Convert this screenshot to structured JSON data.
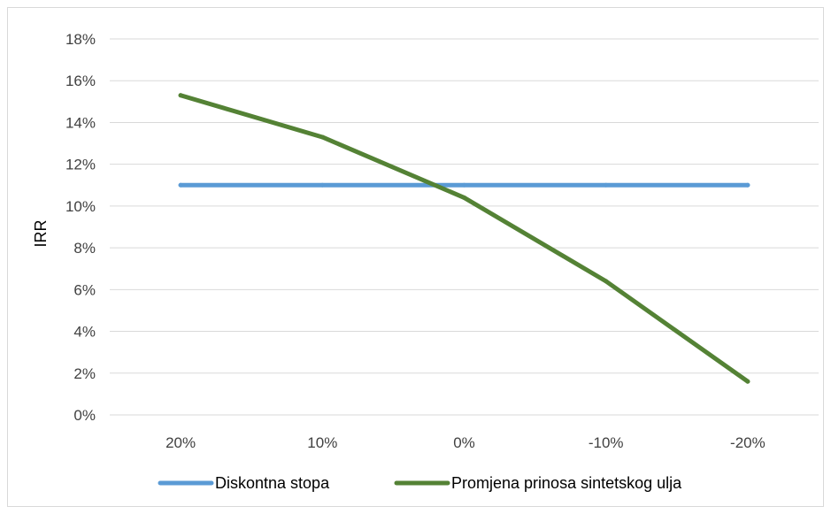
{
  "chart_data": {
    "type": "line",
    "categories": [
      "20%",
      "10%",
      "0%",
      "-10%",
      "-20%"
    ],
    "y_ticks": [
      "0%",
      "2%",
      "4%",
      "6%",
      "8%",
      "10%",
      "12%",
      "14%",
      "16%",
      "18%"
    ],
    "ylabel": "IRR",
    "ylim": [
      0,
      18
    ],
    "grid": true,
    "legend_position": "bottom",
    "series": [
      {
        "name": "Diskontna stopa",
        "values": [
          11,
          11,
          11,
          11,
          11
        ],
        "color": "#5b9bd5"
      },
      {
        "name": "Promjena prinosa sintetskog ulja",
        "values": [
          15.3,
          13.3,
          10.4,
          6.4,
          1.6
        ],
        "color": "#548235"
      }
    ]
  }
}
